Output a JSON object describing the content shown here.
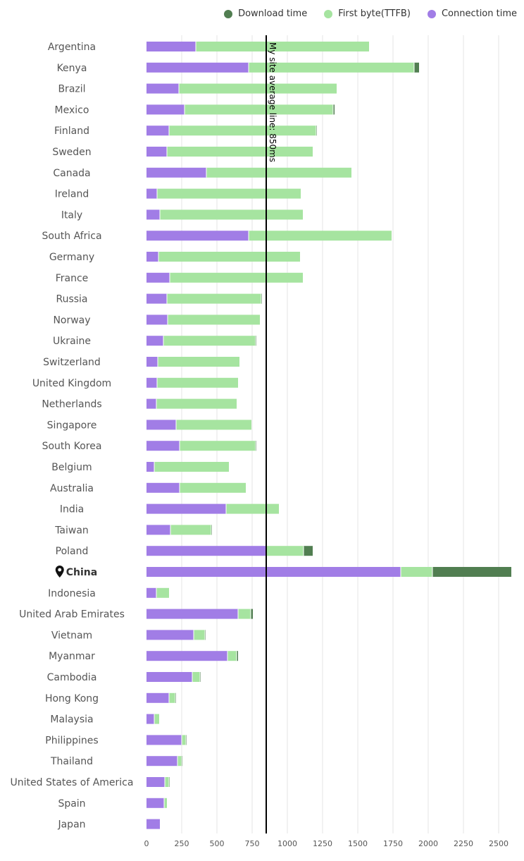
{
  "chart_data": {
    "type": "bar",
    "orientation": "horizontal",
    "stacked": true,
    "categories": [
      "Argentina",
      "Kenya",
      "Brazil",
      "Mexico",
      "Finland",
      "Sweden",
      "Canada",
      "Ireland",
      "Italy",
      "South Africa",
      "Germany",
      "France",
      "Russia",
      "Norway",
      "Ukraine",
      "Switzerland",
      "United Kingdom",
      "Netherlands",
      "Singapore",
      "South Korea",
      "Belgium",
      "Australia",
      "India",
      "Taiwan",
      "Poland",
      "China",
      "Indonesia",
      "United Arab Emirates",
      "Vietnam",
      "Myanmar",
      "Cambodia",
      "Hong Kong",
      "Malaysia",
      "Philippines",
      "Thailand",
      "United States of America",
      "Spain",
      "Japan"
    ],
    "highlighted_category": "China",
    "series": [
      {
        "name": "Connection time",
        "color": "#a17de6",
        "values": [
          350,
          725,
          230,
          270,
          160,
          145,
          425,
          75,
          95,
          725,
          85,
          165,
          145,
          150,
          120,
          80,
          75,
          70,
          210,
          235,
          55,
          235,
          565,
          170,
          850,
          1805,
          70,
          650,
          335,
          575,
          325,
          160,
          55,
          250,
          220,
          130,
          125,
          95
        ]
      },
      {
        "name": "First byte(TTFB)",
        "color": "#a6e4a0",
        "values": [
          1230,
          1175,
          1120,
          1055,
          1045,
          1035,
          1030,
          1020,
          1015,
          1015,
          1005,
          945,
          670,
          655,
          655,
          580,
          575,
          570,
          535,
          540,
          530,
          470,
          375,
          290,
          265,
          225,
          90,
          90,
          80,
          65,
          55,
          45,
          35,
          30,
          30,
          30,
          20,
          0
        ]
      },
      {
        "name": "Download time",
        "color": "#517e51",
        "values": [
          0,
          35,
          0,
          10,
          5,
          0,
          0,
          0,
          0,
          0,
          0,
          0,
          5,
          0,
          5,
          0,
          0,
          0,
          0,
          5,
          0,
          0,
          0,
          5,
          65,
          560,
          0,
          15,
          5,
          10,
          5,
          5,
          0,
          5,
          5,
          5,
          0,
          0
        ]
      }
    ],
    "legend_order": [
      "Download time",
      "First byte(TTFB)",
      "Connection time"
    ],
    "legend_position": "top-right",
    "xlim": [
      0,
      2600
    ],
    "xticks": [
      0,
      250,
      500,
      750,
      1000,
      1250,
      1500,
      1750,
      2000,
      2250,
      2500
    ],
    "xtick_labels": [
      "0",
      "250",
      "500",
      "750",
      "1000",
      "1250",
      "1500",
      "1750",
      "2000",
      "2250",
      "2500"
    ],
    "grid": "vertical",
    "average_line": {
      "value": 850,
      "label": "My site average line: 850ms"
    }
  }
}
